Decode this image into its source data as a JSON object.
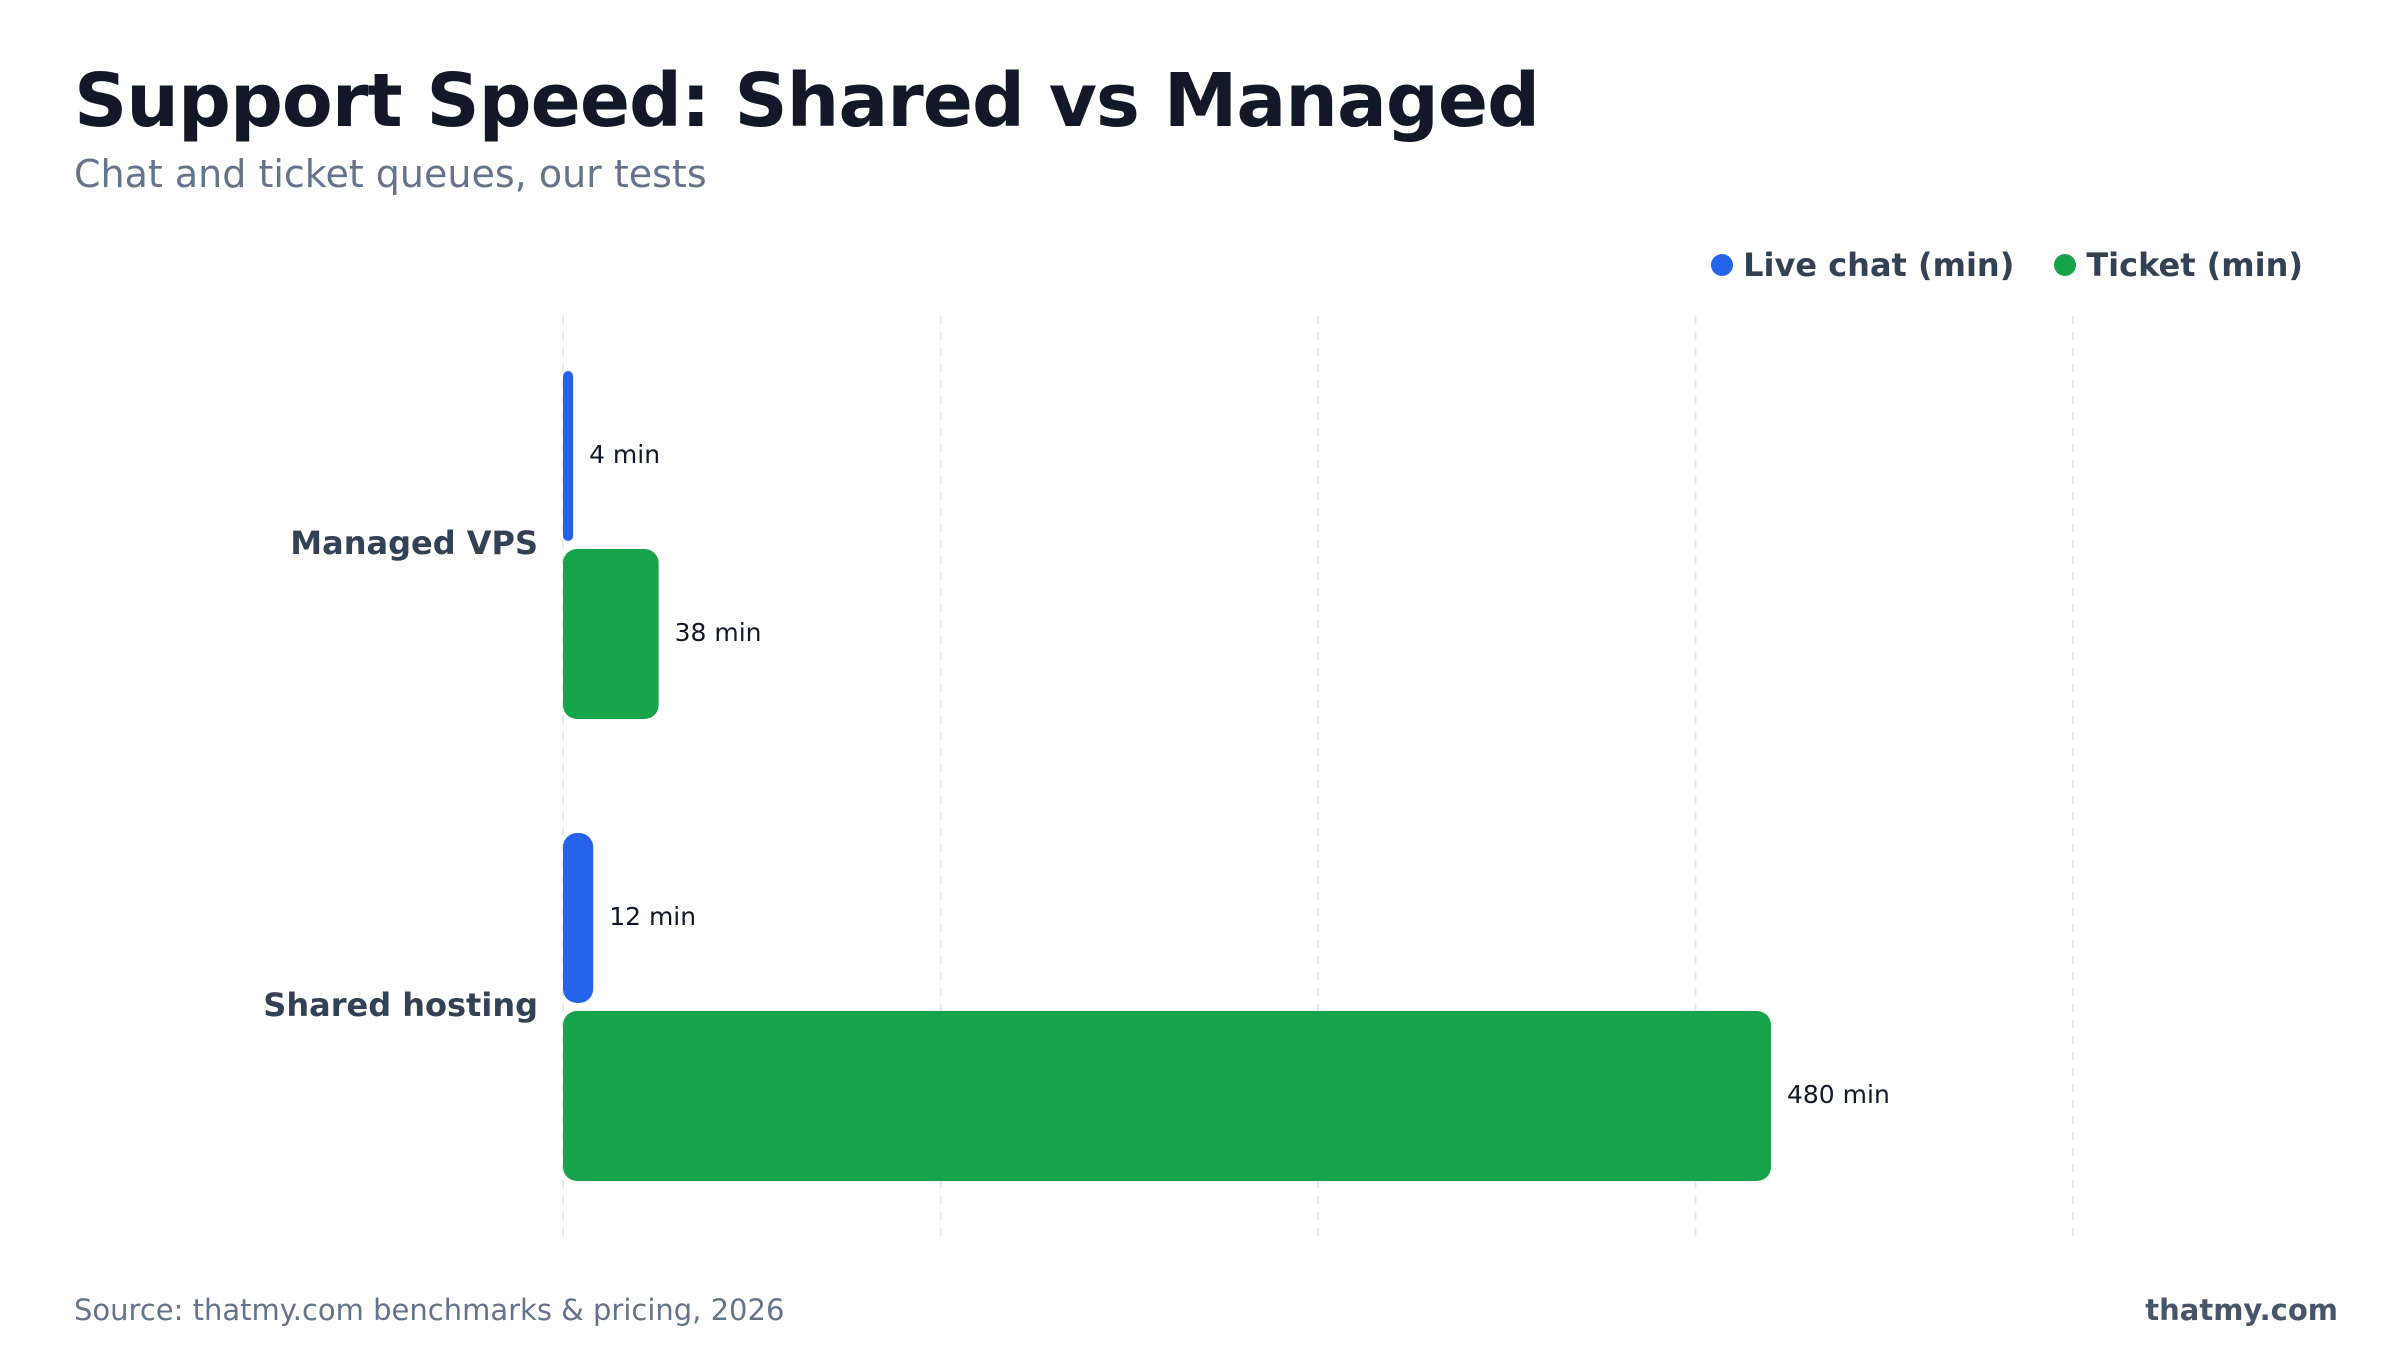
{
  "header": {
    "title": "Support Speed: Shared vs Managed",
    "subtitle": "Chat and ticket queues, our tests"
  },
  "legend": {
    "items": [
      {
        "label": "Live chat (min)",
        "color": "#2563eb"
      },
      {
        "label": "Ticket (min)",
        "color": "#16a34a"
      }
    ]
  },
  "footer": {
    "source": "Source: thatmy.com benchmarks & pricing, 2026",
    "brand": "thatmy.com"
  },
  "chart_data": {
    "type": "bar",
    "orientation": "horizontal",
    "title": "Support Speed: Shared vs Managed",
    "subtitle": "Chat and ticket queues, our tests",
    "categories": [
      "Managed VPS",
      "Shared hosting"
    ],
    "series": [
      {
        "name": "Live chat (min)",
        "values": [
          4,
          12
        ],
        "labels": [
          "4 min",
          "12 min"
        ],
        "color": "#2563eb"
      },
      {
        "name": "Ticket (min)",
        "values": [
          38,
          480
        ],
        "labels": [
          "38 min",
          "480 min"
        ],
        "color": "#16a34a"
      }
    ],
    "xlim": [
      0,
      600
    ],
    "grid": true,
    "legend_position": "top-right"
  }
}
